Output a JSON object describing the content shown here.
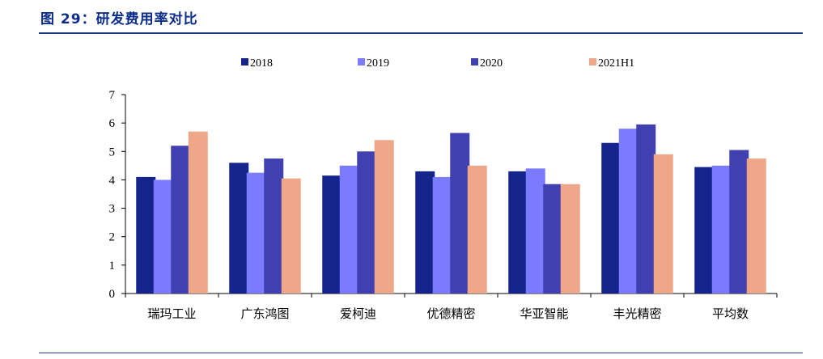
{
  "figure": {
    "title": "图 29：研发费用率对比"
  },
  "colors": {
    "title": "#0b2c8a",
    "rule": "#1f3b8c"
  },
  "chart_data": {
    "type": "bar",
    "title": "",
    "xlabel": "",
    "ylabel": "",
    "ylim": [
      0,
      7
    ],
    "yticks": [
      0,
      1,
      2,
      3,
      4,
      5,
      6,
      7
    ],
    "grid": false,
    "legend_position": "top",
    "categories": [
      "瑞玛工业",
      "广东鸿图",
      "爱柯迪",
      "优德精密",
      "华亚智能",
      "丰光精密",
      "平均数"
    ],
    "series": [
      {
        "name": "2018",
        "color": "#14248c",
        "values": [
          4.1,
          4.6,
          4.15,
          4.3,
          4.3,
          5.3,
          4.45
        ]
      },
      {
        "name": "2019",
        "color": "#7b7bff",
        "values": [
          4.0,
          4.25,
          4.5,
          4.1,
          4.4,
          5.8,
          4.5
        ]
      },
      {
        "name": "2020",
        "color": "#4040b0",
        "values": [
          5.2,
          4.75,
          5.0,
          5.65,
          3.85,
          5.95,
          5.05
        ]
      },
      {
        "name": "2021H1",
        "color": "#eea889",
        "values": [
          5.7,
          4.05,
          5.4,
          4.5,
          3.85,
          4.9,
          4.75
        ]
      }
    ]
  }
}
